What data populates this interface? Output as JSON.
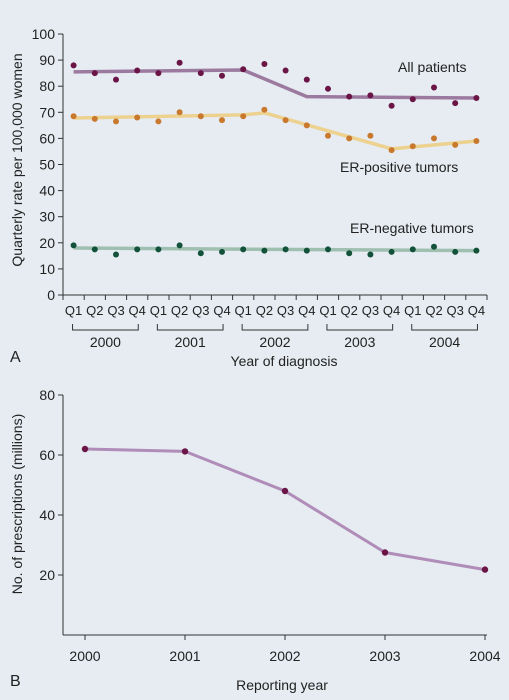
{
  "panels": {
    "a": {
      "label": "A"
    },
    "b": {
      "label": "B"
    }
  },
  "chart_data": [
    {
      "type": "scatter",
      "xlabel": "Year of diagnosis",
      "ylabel": "Quarterly rate per 100,000 women",
      "ylim": [
        0,
        100
      ],
      "yticks": [
        0,
        10,
        20,
        30,
        40,
        50,
        60,
        70,
        80,
        90,
        100
      ],
      "quarters": [
        "Q1",
        "Q2",
        "Q3",
        "Q4"
      ],
      "years": [
        "2000",
        "2001",
        "2002",
        "2003",
        "2004"
      ],
      "grid": false,
      "series": [
        {
          "name": "All patients",
          "color": "#6b1546",
          "trend_color": "#9c7aa0",
          "values": [
            88,
            85,
            82.5,
            86,
            85,
            89,
            85,
            84,
            86.5,
            88.5,
            86,
            82.5,
            79,
            76,
            76.5,
            72.5,
            75,
            79.5,
            73.5,
            75.5
          ],
          "trend": [
            [
              1,
              85.5
            ],
            [
              9,
              86.2
            ],
            [
              12,
              76
            ],
            [
              20,
              75.5
            ]
          ]
        },
        {
          "name": "ER-positive tumors",
          "color": "#c9792e",
          "trend_color": "#ecd18f",
          "values": [
            68.5,
            67.5,
            66.5,
            68,
            66.5,
            70,
            68.5,
            67,
            68.5,
            71,
            67,
            65,
            61,
            60,
            61,
            55.5,
            57,
            60,
            57.5,
            59
          ],
          "trend": [
            [
              1,
              67.8
            ],
            [
              9,
              69
            ],
            [
              10,
              69.8
            ],
            [
              16,
              56
            ],
            [
              20,
              59
            ]
          ]
        },
        {
          "name": "ER-negative tumors",
          "color": "#13523a",
          "trend_color": "#9fbfb0",
          "values": [
            19,
            17.5,
            15.5,
            17.5,
            17.5,
            19,
            16,
            16.5,
            17.5,
            17,
            17.5,
            17,
            17.5,
            16,
            15.5,
            16.5,
            17.5,
            18.5,
            16.5,
            17
          ],
          "trend": [
            [
              1,
              18
            ],
            [
              20,
              17
            ]
          ]
        }
      ]
    },
    {
      "type": "line",
      "xlabel": "Reporting year",
      "ylabel": "No. of prescriptions (millions)",
      "ylim": [
        0,
        80
      ],
      "yticks": [
        20,
        40,
        60,
        80
      ],
      "x": [
        "2000",
        "2001",
        "2002",
        "2003",
        "2004"
      ],
      "grid": false,
      "series": [
        {
          "color": "#6b1546",
          "line_color": "#b08cb8",
          "values": [
            62,
            61.2,
            48,
            27.5,
            21.8
          ]
        }
      ]
    }
  ]
}
